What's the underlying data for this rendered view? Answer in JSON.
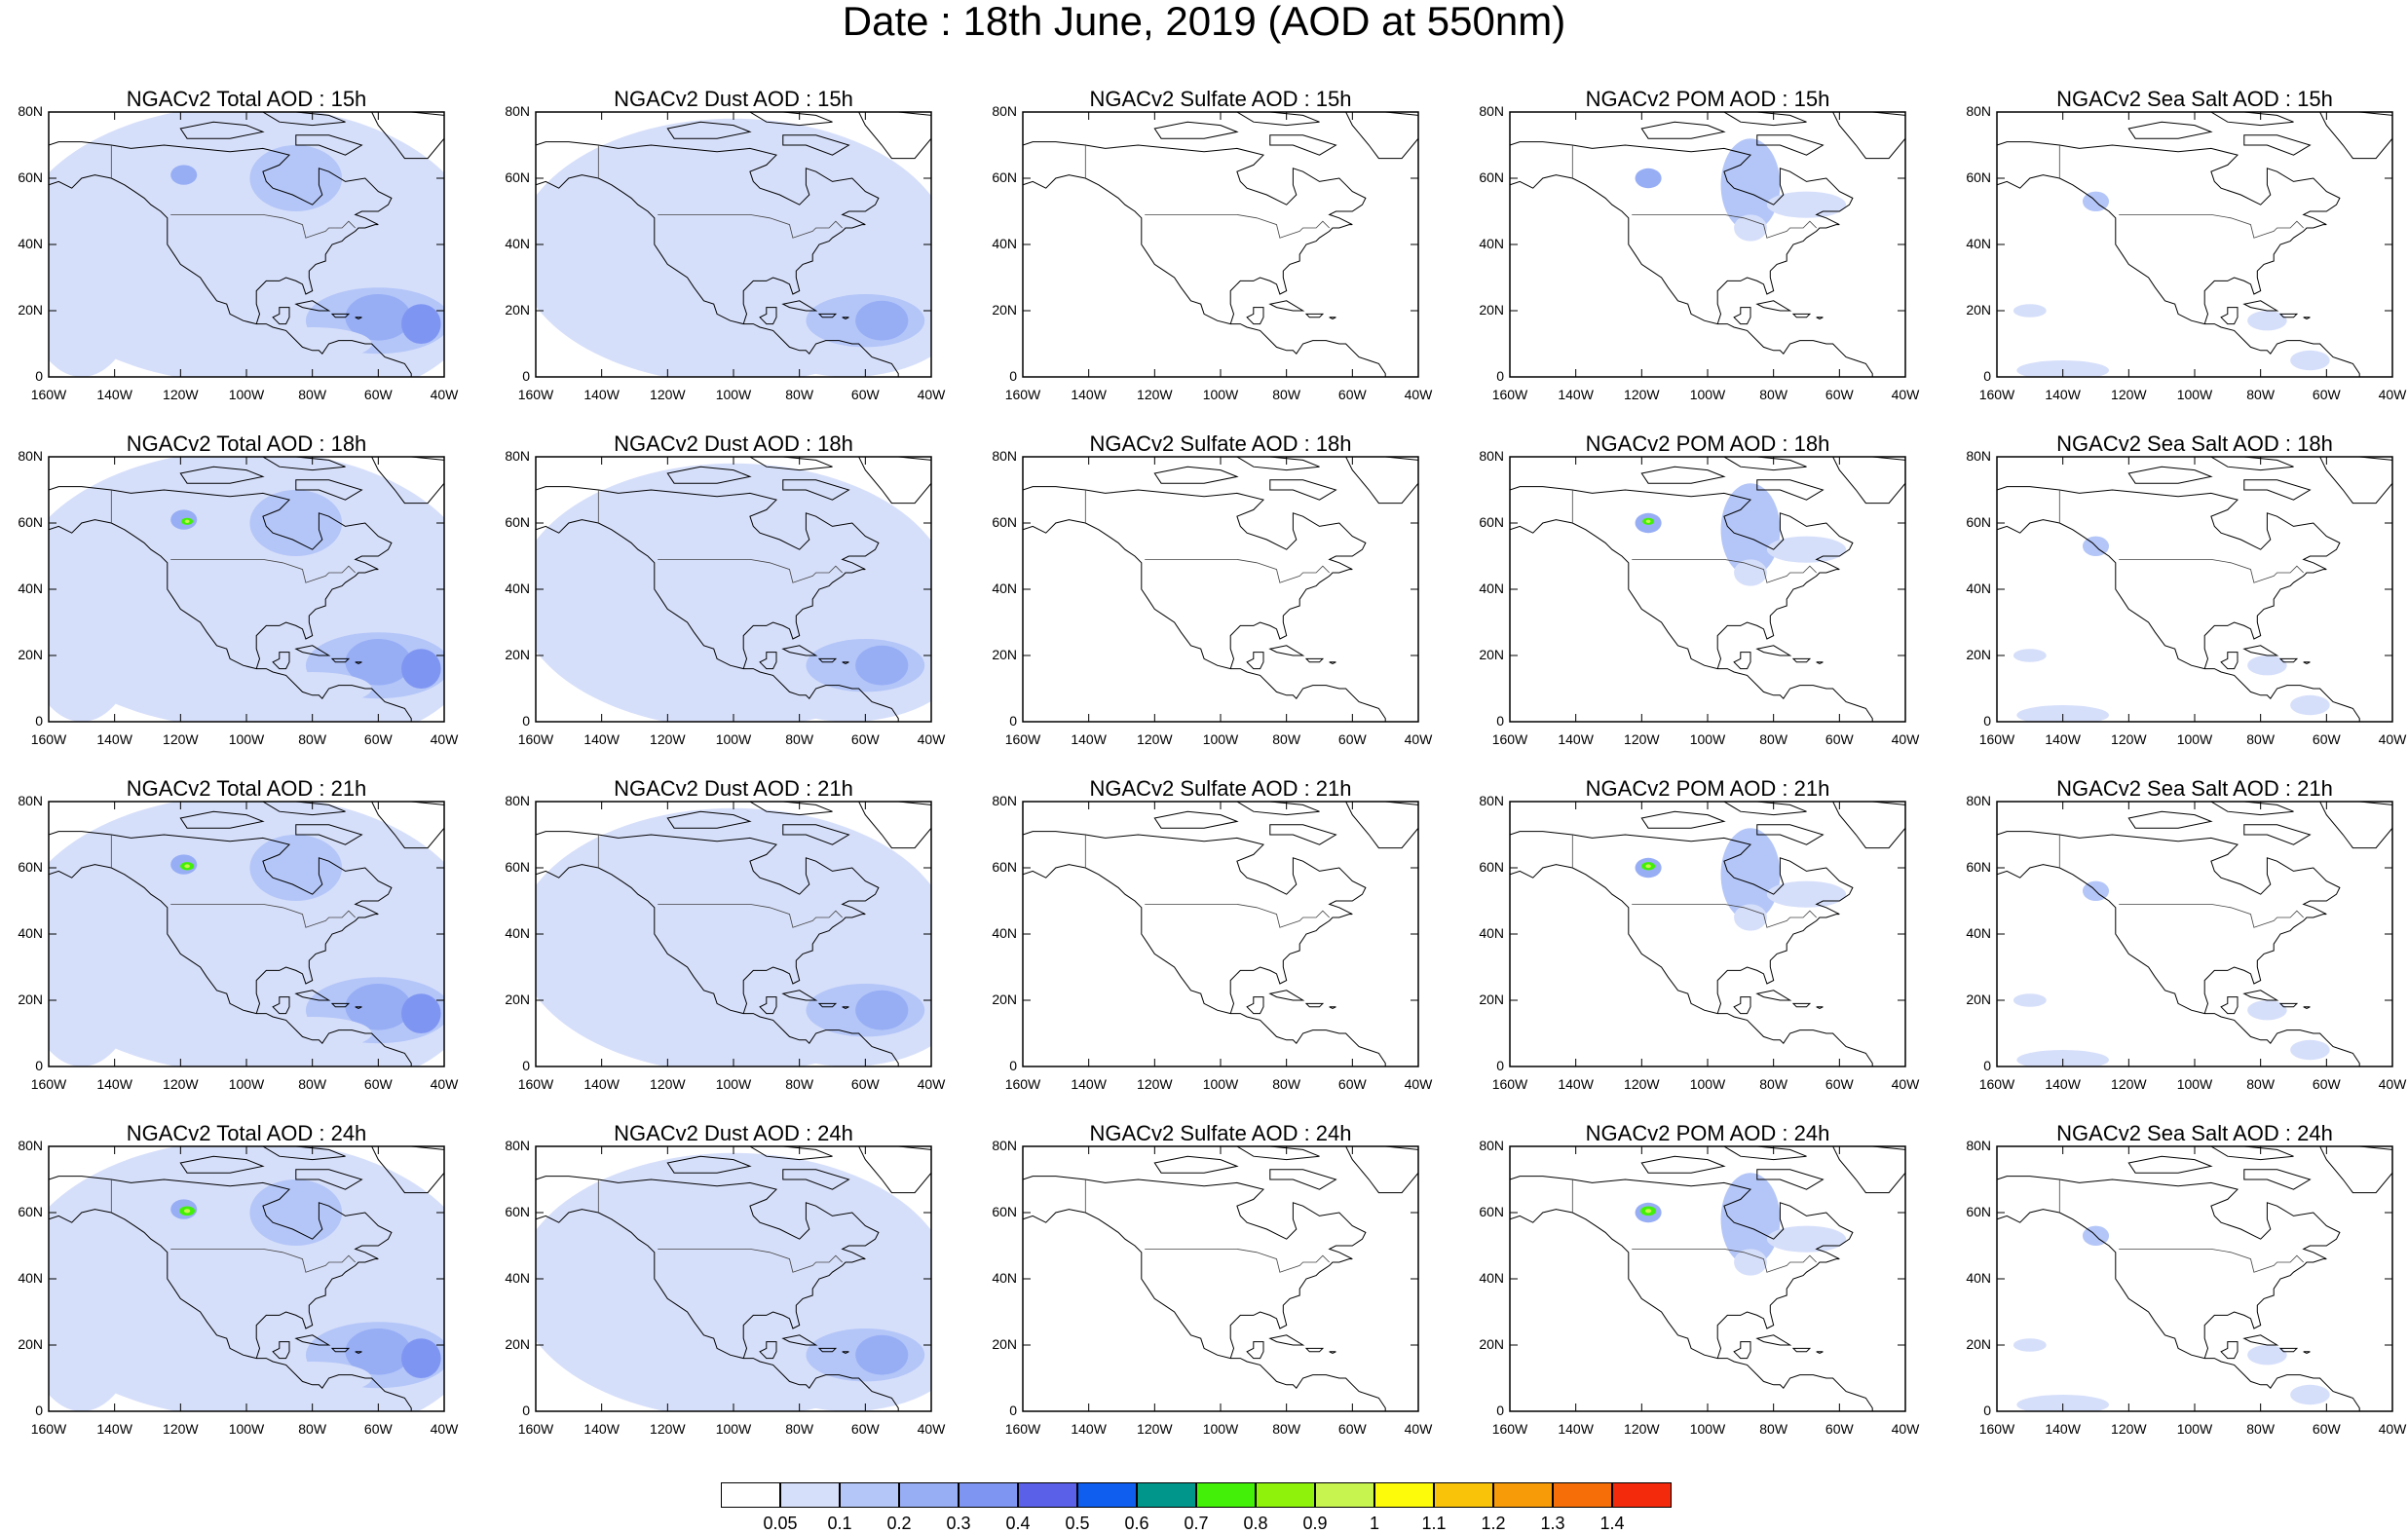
{
  "title": "Date : 18th June, 2019 (AOD at 550nm)",
  "columns": [
    {
      "species": "total"
    },
    {
      "species": "dust"
    },
    {
      "species": "sulfate"
    },
    {
      "species": "pom"
    },
    {
      "species": "seasalt"
    }
  ],
  "panels": [
    {
      "title": "NGACv2 Total AOD : 15h",
      "species": "total",
      "hour": 15
    },
    {
      "title": "NGACv2 Dust AOD : 15h",
      "species": "dust",
      "hour": 15
    },
    {
      "title": "NGACv2 Sulfate AOD : 15h",
      "species": "sulfate",
      "hour": 15
    },
    {
      "title": "NGACv2 POM AOD : 15h",
      "species": "pom",
      "hour": 15
    },
    {
      "title": "NGACv2 Sea Salt AOD : 15h",
      "species": "seasalt",
      "hour": 15
    },
    {
      "title": "NGACv2 Total AOD : 18h",
      "species": "total",
      "hour": 18
    },
    {
      "title": "NGACv2 Dust AOD : 18h",
      "species": "dust",
      "hour": 18
    },
    {
      "title": "NGACv2 Sulfate AOD : 18h",
      "species": "sulfate",
      "hour": 18
    },
    {
      "title": "NGACv2 POM AOD : 18h",
      "species": "pom",
      "hour": 18
    },
    {
      "title": "NGACv2 Sea Salt AOD : 18h",
      "species": "seasalt",
      "hour": 18
    },
    {
      "title": "NGACv2 Total AOD : 21h",
      "species": "total",
      "hour": 21
    },
    {
      "title": "NGACv2 Dust AOD : 21h",
      "species": "dust",
      "hour": 21
    },
    {
      "title": "NGACv2 Sulfate AOD : 21h",
      "species": "sulfate",
      "hour": 21
    },
    {
      "title": "NGACv2 POM AOD : 21h",
      "species": "pom",
      "hour": 21
    },
    {
      "title": "NGACv2 Sea Salt AOD : 21h",
      "species": "seasalt",
      "hour": 21
    },
    {
      "title": "NGACv2 Total AOD : 24h",
      "species": "total",
      "hour": 24
    },
    {
      "title": "NGACv2 Dust AOD : 24h",
      "species": "dust",
      "hour": 24
    },
    {
      "title": "NGACv2 Sulfate AOD : 24h",
      "species": "sulfate",
      "hour": 24
    },
    {
      "title": "NGACv2 POM AOD : 24h",
      "species": "pom",
      "hour": 24
    },
    {
      "title": "NGACv2 Sea Salt  AOD : 24h",
      "species": "seasalt",
      "hour": 24
    }
  ],
  "lat_ticks": [
    "80N",
    "60N",
    "40N",
    "20N",
    "0"
  ],
  "lon_ticks": [
    "160W",
    "140W",
    "120W",
    "100W",
    "80W",
    "60W",
    "40W"
  ],
  "colorbar": {
    "levels": [
      "0.05",
      "0.1",
      "0.2",
      "0.3",
      "0.4",
      "0.5",
      "0.6",
      "0.7",
      "0.8",
      "0.9",
      "1",
      "1.1",
      "1.2",
      "1.3",
      "1.4"
    ],
    "colors": [
      "#ffffff",
      "#d6dffa",
      "#b4c6f8",
      "#97aef5",
      "#7f95f2",
      "#5b60e8",
      "#0f5ef0",
      "#00968c",
      "#43f007",
      "#8ff20b",
      "#c8f450",
      "#fdfb0a",
      "#f9c309",
      "#f79b08",
      "#f56e07",
      "#f42a0d"
    ]
  },
  "shading_colors": {
    "light": "#d6dffa",
    "medium": "#b4c6f8",
    "strong": "#97aef5",
    "deep": "#7f95f2",
    "green": "#43f007",
    "yellowgreen": "#c8f450"
  }
}
